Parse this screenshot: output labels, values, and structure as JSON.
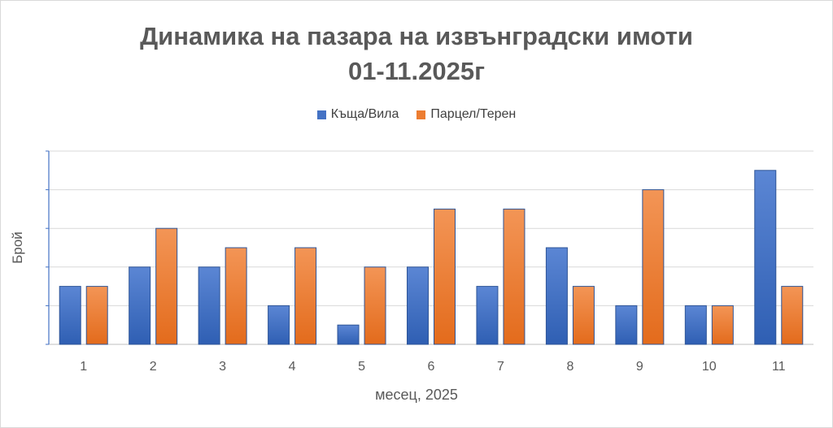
{
  "chart_data": {
    "type": "bar",
    "title_line1": "Динамика на пазара на извънградски имоти",
    "title_line2": "01-11.2025г",
    "xlabel": "месец, 2025",
    "ylabel": "Брой",
    "categories": [
      "1",
      "2",
      "3",
      "4",
      "5",
      "6",
      "7",
      "8",
      "9",
      "10",
      "11"
    ],
    "series": [
      {
        "name": "Къща/Вила",
        "color": "#4472c4",
        "values": [
          3,
          4,
          4,
          2,
          1,
          4,
          3,
          5,
          2,
          2,
          9
        ]
      },
      {
        "name": "Парцел/Терен",
        "color": "#ed7d31",
        "values": [
          3,
          6,
          5,
          5,
          4,
          7,
          7,
          3,
          8,
          2,
          3
        ]
      }
    ],
    "ylim": [
      0,
      10
    ],
    "grid": true,
    "legend_position": "top"
  }
}
